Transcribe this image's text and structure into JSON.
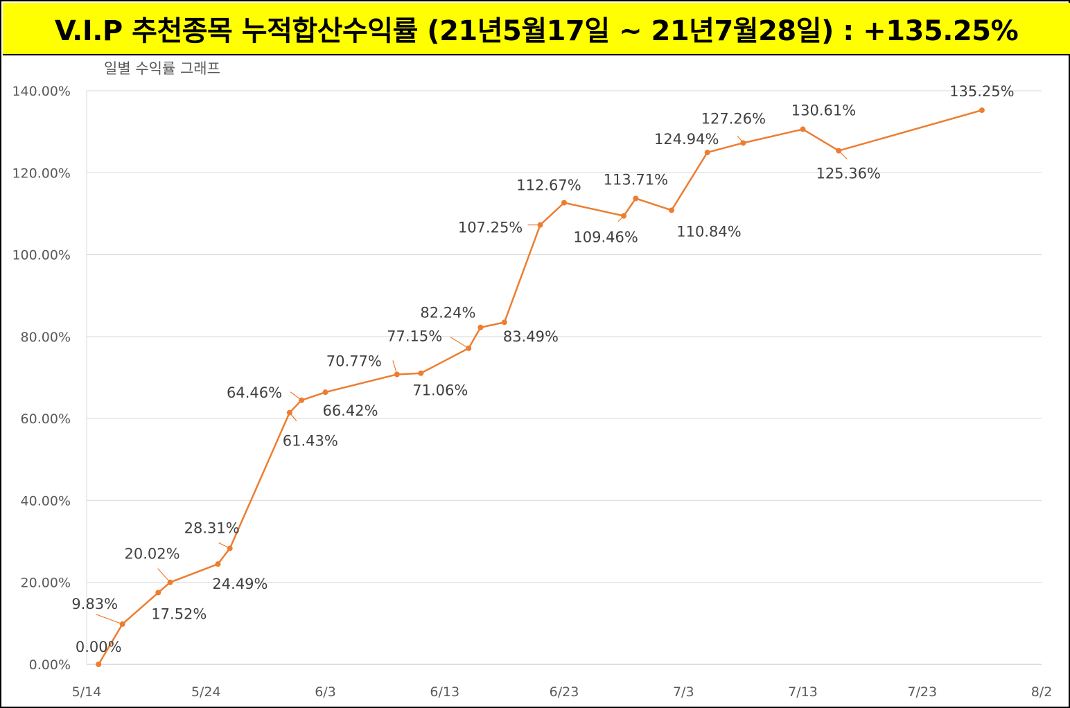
{
  "banner": {
    "title": "V.I.P 추천종목 누적합산수익률 (21년5월17일 ~ 21년7월28일) : +135.25%"
  },
  "chart_data": {
    "type": "line",
    "title": "일별 수익률 그래프",
    "xlabel": "",
    "ylabel": "",
    "x_ticks": [
      "5/14",
      "5/24",
      "6/3",
      "6/13",
      "6/23",
      "7/3",
      "7/13",
      "7/23",
      "8/2"
    ],
    "y_ticks": [
      "0.00%",
      "20.00%",
      "40.00%",
      "60.00%",
      "80.00%",
      "100.00%",
      "120.00%",
      "140.00%"
    ],
    "xlim": [
      "2021-05-14",
      "2021-08-02"
    ],
    "ylim": [
      0,
      140
    ],
    "grid": true,
    "legend": "none",
    "color": "#ed7d31",
    "series": [
      {
        "points": [
          {
            "x": "2021-05-15",
            "y": 0.0,
            "label": "0.00%"
          },
          {
            "x": "2021-05-17",
            "y": 9.83,
            "label": "9.83%"
          },
          {
            "x": "2021-05-20",
            "y": 17.52,
            "label": "17.52%"
          },
          {
            "x": "2021-05-21",
            "y": 20.02,
            "label": "20.02%"
          },
          {
            "x": "2021-05-25",
            "y": 24.49,
            "label": "24.49%"
          },
          {
            "x": "2021-05-26",
            "y": 28.31,
            "label": "28.31%"
          },
          {
            "x": "2021-05-31",
            "y": 61.43,
            "label": "61.43%"
          },
          {
            "x": "2021-06-01",
            "y": 64.46,
            "label": "64.46%"
          },
          {
            "x": "2021-06-03",
            "y": 66.42,
            "label": "66.42%"
          },
          {
            "x": "2021-06-09",
            "y": 70.77,
            "label": "70.77%"
          },
          {
            "x": "2021-06-11",
            "y": 71.06,
            "label": "71.06%"
          },
          {
            "x": "2021-06-15",
            "y": 77.15,
            "label": "77.15%"
          },
          {
            "x": "2021-06-16",
            "y": 82.24,
            "label": "82.24%"
          },
          {
            "x": "2021-06-18",
            "y": 83.49,
            "label": "83.49%"
          },
          {
            "x": "2021-06-21",
            "y": 107.25,
            "label": "107.25%"
          },
          {
            "x": "2021-06-23",
            "y": 112.67,
            "label": "112.67%"
          },
          {
            "x": "2021-06-28",
            "y": 109.46,
            "label": "109.46%"
          },
          {
            "x": "2021-06-29",
            "y": 113.71,
            "label": "113.71%"
          },
          {
            "x": "2021-07-02",
            "y": 110.84,
            "label": "110.84%"
          },
          {
            "x": "2021-07-05",
            "y": 124.94,
            "label": "124.94%"
          },
          {
            "x": "2021-07-08",
            "y": 127.26,
            "label": "127.26%"
          },
          {
            "x": "2021-07-13",
            "y": 130.61,
            "label": "130.61%"
          },
          {
            "x": "2021-07-16",
            "y": 125.36,
            "label": "125.36%"
          },
          {
            "x": "2021-07-28",
            "y": 135.25,
            "label": "135.25%"
          }
        ]
      }
    ]
  }
}
